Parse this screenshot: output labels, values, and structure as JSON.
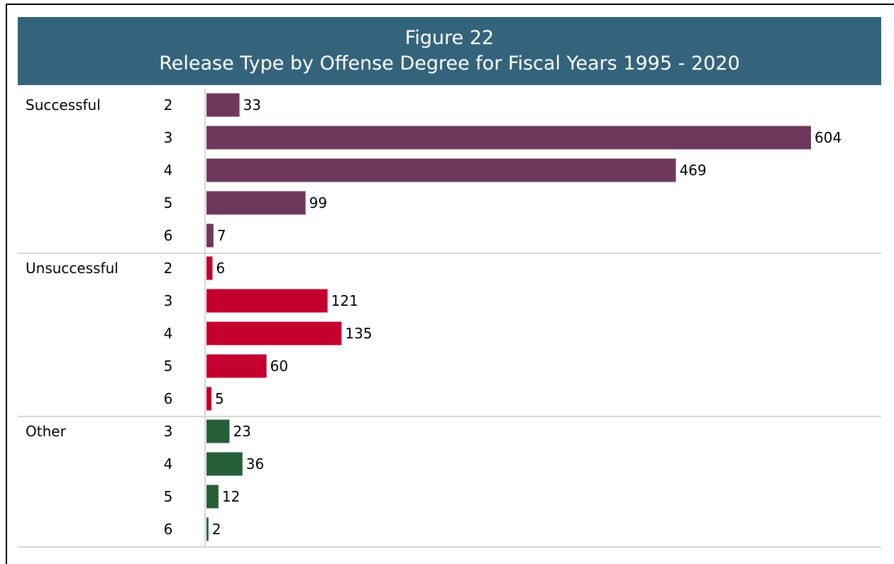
{
  "header": {
    "figure_label": "Figure 22",
    "title": "Release Type by Offense Degree for Fiscal Years 1995 - 2020"
  },
  "colors": {
    "Successful": "#6e385d",
    "Unsuccessful": "#c4002f",
    "Other": "#265f38",
    "header_bg": "#34637c"
  },
  "chart_data": {
    "type": "bar",
    "orientation": "horizontal",
    "title": "Release Type by Offense Degree for Fiscal Years 1995 - 2020",
    "grid": false,
    "groups": [
      {
        "name": "Successful",
        "categories": [
          "2",
          "3",
          "4",
          "5",
          "6"
        ],
        "values": [
          33,
          604,
          469,
          99,
          7
        ]
      },
      {
        "name": "Unsuccessful",
        "categories": [
          "2",
          "3",
          "4",
          "5",
          "6"
        ],
        "values": [
          6,
          121,
          135,
          60,
          5
        ]
      },
      {
        "name": "Other",
        "categories": [
          "3",
          "4",
          "5",
          "6"
        ],
        "values": [
          23,
          36,
          12,
          2
        ]
      }
    ],
    "xlim": [
      0,
      604
    ]
  }
}
